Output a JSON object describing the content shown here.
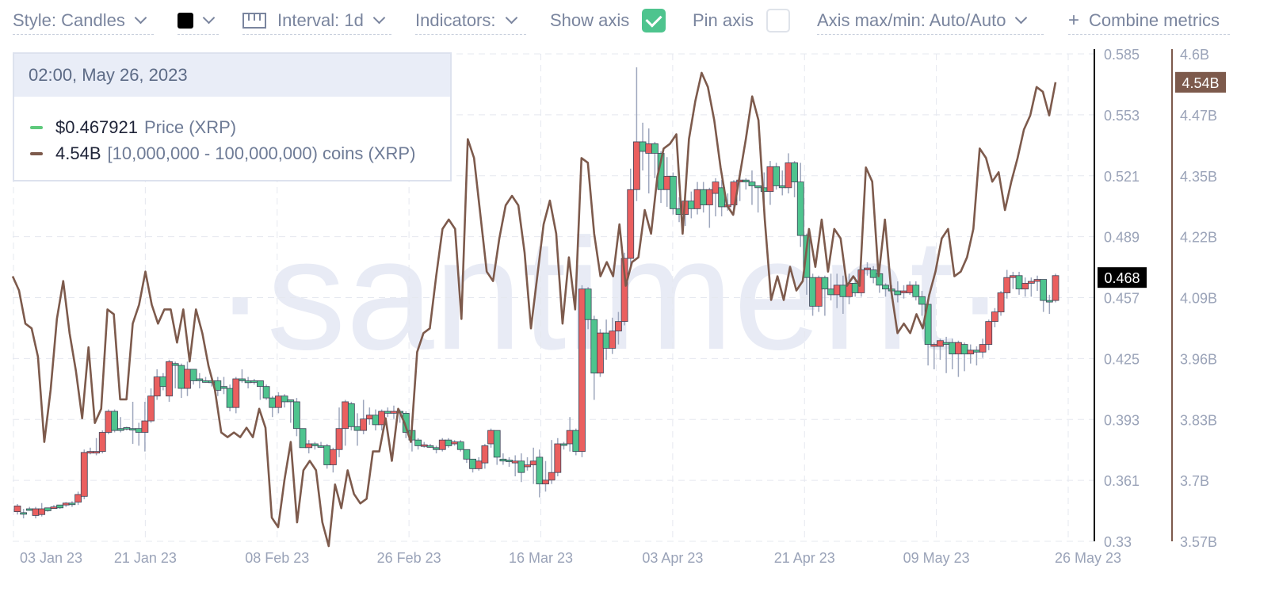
{
  "toolbar": {
    "style_label": "Style: Candles",
    "color_swatch": "#000000",
    "interval_label": "Interval: 1d",
    "indicators_label": "Indicators:",
    "show_axis_label": "Show axis",
    "show_axis_checked": true,
    "pin_axis_label": "Pin axis",
    "pin_axis_checked": false,
    "axis_maxmin_label": "Axis max/min: Auto/Auto",
    "combine_metrics_label": "Combine metrics",
    "combine_icon": "plus-icon"
  },
  "watermark": "·santiment·",
  "tooltip": {
    "date": "02:00, May 26, 2023",
    "rows": [
      {
        "value": "$0.467921",
        "label": "Price (XRP)",
        "color": "#5ec97c"
      },
      {
        "value": "4.54B",
        "label": "[10,000,000 - 100,000,000) coins (XRP)",
        "color": "#7d5a4c"
      }
    ]
  },
  "chart_data": {
    "type": "candlestick+line",
    "x_ticks": [
      "03 Jan 23",
      "21 Jan 23",
      "08 Feb 23",
      "26 Feb 23",
      "16 Mar 23",
      "03 Apr 23",
      "21 Apr 23",
      "09 May 23",
      "26 May 23"
    ],
    "price_axis": {
      "ticks": [
        "0.585",
        "0.553",
        "0.521",
        "0.489",
        "0.457",
        "0.425",
        "0.393",
        "0.361",
        "0.33"
      ],
      "range": [
        0.33,
        0.585
      ],
      "current_label": "0.468",
      "current_value": 0.468
    },
    "supply_axis": {
      "ticks": [
        "4.6B",
        "4.47B",
        "4.35B",
        "4.22B",
        "4.09B",
        "3.96B",
        "3.83B",
        "3.7B",
        "3.57B"
      ],
      "range": [
        3.57,
        4.6
      ],
      "current_label": "4.54B",
      "current_value": 4.54,
      "color": "#7d5a4c"
    },
    "colors": {
      "up": "#4ec48e",
      "down": "#ea5f5f",
      "line": "#7d5a4c",
      "wick": "#9ea7bd"
    },
    "candles": [
      [
        0.3485,
        0.3495,
        0.3455,
        0.344
      ],
      [
        0.3445,
        0.347,
        0.345,
        0.342
      ],
      [
        0.347,
        0.348,
        0.347,
        0.346
      ],
      [
        0.347,
        0.348,
        0.3435,
        0.342
      ],
      [
        0.347,
        0.35,
        0.344,
        0.343
      ],
      [
        0.346,
        0.3465,
        0.3475,
        0.3455
      ],
      [
        0.348,
        0.349,
        0.3475,
        0.347
      ],
      [
        0.3475,
        0.349,
        0.349,
        0.347
      ],
      [
        0.35,
        0.3505,
        0.349,
        0.348
      ],
      [
        0.3495,
        0.351,
        0.35,
        0.348
      ],
      [
        0.3545,
        0.356,
        0.3505,
        0.349
      ],
      [
        0.3765,
        0.378,
        0.3535,
        0.352
      ],
      [
        0.377,
        0.379,
        0.3765,
        0.3755
      ],
      [
        0.377,
        0.384,
        0.3765,
        0.375
      ],
      [
        0.387,
        0.388,
        0.377,
        0.376
      ],
      [
        0.398,
        0.399,
        0.387,
        0.386
      ],
      [
        0.388,
        0.399,
        0.398,
        0.387
      ],
      [
        0.388,
        0.395,
        0.389,
        0.387
      ],
      [
        0.389,
        0.39,
        0.3895,
        0.388
      ],
      [
        0.389,
        0.403,
        0.389,
        0.381
      ],
      [
        0.387,
        0.392,
        0.389,
        0.38
      ],
      [
        0.393,
        0.403,
        0.387,
        0.377
      ],
      [
        0.406,
        0.41,
        0.393,
        0.392
      ],
      [
        0.416,
        0.42,
        0.406,
        0.404
      ],
      [
        0.411,
        0.418,
        0.416,
        0.409
      ],
      [
        0.424,
        0.425,
        0.406,
        0.403
      ],
      [
        0.422,
        0.424,
        0.423,
        0.41
      ],
      [
        0.41,
        0.423,
        0.422,
        0.405
      ],
      [
        0.42,
        0.424,
        0.41,
        0.406
      ],
      [
        0.414,
        0.417,
        0.42,
        0.412
      ],
      [
        0.414,
        0.418,
        0.415,
        0.41
      ],
      [
        0.414,
        0.416,
        0.414,
        0.413
      ],
      [
        0.413,
        0.415,
        0.414,
        0.411
      ],
      [
        0.409,
        0.416,
        0.414,
        0.406
      ],
      [
        0.41,
        0.416,
        0.411,
        0.407
      ],
      [
        0.4,
        0.412,
        0.41,
        0.398
      ],
      [
        0.415,
        0.416,
        0.4,
        0.397
      ],
      [
        0.414,
        0.42,
        0.415,
        0.413
      ],
      [
        0.413,
        0.416,
        0.414,
        0.41
      ],
      [
        0.414,
        0.415,
        0.414,
        0.412
      ],
      [
        0.411,
        0.413,
        0.414,
        0.404
      ],
      [
        0.405,
        0.412,
        0.411,
        0.404
      ],
      [
        0.4,
        0.406,
        0.405,
        0.395
      ],
      [
        0.406,
        0.408,
        0.4,
        0.397
      ],
      [
        0.403,
        0.407,
        0.406,
        0.4
      ],
      [
        0.403,
        0.404,
        0.404,
        0.392
      ],
      [
        0.389,
        0.405,
        0.403,
        0.385
      ],
      [
        0.379,
        0.388,
        0.389,
        0.379
      ],
      [
        0.381,
        0.383,
        0.379,
        0.376
      ],
      [
        0.38,
        0.382,
        0.381,
        0.378
      ],
      [
        0.38,
        0.382,
        0.38,
        0.379
      ],
      [
        0.37,
        0.381,
        0.38,
        0.368
      ],
      [
        0.378,
        0.379,
        0.37,
        0.366
      ],
      [
        0.389,
        0.4,
        0.378,
        0.374
      ],
      [
        0.403,
        0.404,
        0.389,
        0.38
      ],
      [
        0.39,
        0.403,
        0.402,
        0.388
      ],
      [
        0.388,
        0.397,
        0.39,
        0.38
      ],
      [
        0.394,
        0.404,
        0.388,
        0.386
      ],
      [
        0.396,
        0.4,
        0.394,
        0.391
      ],
      [
        0.391,
        0.399,
        0.396,
        0.388
      ],
      [
        0.398,
        0.399,
        0.391,
        0.388
      ],
      [
        0.397,
        0.4,
        0.398,
        0.395
      ],
      [
        0.398,
        0.401,
        0.397,
        0.394
      ],
      [
        0.398,
        0.399,
        0.398,
        0.392
      ],
      [
        0.387,
        0.398,
        0.397,
        0.384
      ],
      [
        0.383,
        0.39,
        0.388,
        0.377
      ],
      [
        0.38,
        0.384,
        0.383,
        0.378
      ],
      [
        0.3805,
        0.382,
        0.38,
        0.379
      ],
      [
        0.38,
        0.381,
        0.38,
        0.379
      ],
      [
        0.378,
        0.38,
        0.379,
        0.376
      ],
      [
        0.383,
        0.384,
        0.378,
        0.377
      ],
      [
        0.38,
        0.384,
        0.383,
        0.379
      ],
      [
        0.382,
        0.383,
        0.381,
        0.38
      ],
      [
        0.378,
        0.383,
        0.382,
        0.377
      ],
      [
        0.373,
        0.378,
        0.378,
        0.371
      ],
      [
        0.368,
        0.373,
        0.373,
        0.366
      ],
      [
        0.372,
        0.374,
        0.368,
        0.367
      ],
      [
        0.38,
        0.381,
        0.371,
        0.368
      ],
      [
        0.388,
        0.389,
        0.381,
        0.379
      ],
      [
        0.374,
        0.388,
        0.388,
        0.37
      ],
      [
        0.372,
        0.376,
        0.373,
        0.37
      ],
      [
        0.372,
        0.374,
        0.3725,
        0.369
      ],
      [
        0.372,
        0.375,
        0.371,
        0.364
      ],
      [
        0.366,
        0.376,
        0.372,
        0.361
      ],
      [
        0.37,
        0.374,
        0.369,
        0.367
      ],
      [
        0.372,
        0.379,
        0.37,
        0.36
      ],
      [
        0.36,
        0.378,
        0.374,
        0.353
      ],
      [
        0.362,
        0.372,
        0.36,
        0.356
      ],
      [
        0.366,
        0.383,
        0.362,
        0.36
      ],
      [
        0.381,
        0.384,
        0.366,
        0.364
      ],
      [
        0.381,
        0.382,
        0.381,
        0.378
      ],
      [
        0.388,
        0.395,
        0.381,
        0.377
      ],
      [
        0.377,
        0.389,
        0.388,
        0.375
      ],
      [
        0.462,
        0.464,
        0.377,
        0.374
      ],
      [
        0.446,
        0.463,
        0.462,
        0.441
      ],
      [
        0.418,
        0.448,
        0.446,
        0.404
      ],
      [
        0.439,
        0.441,
        0.418,
        0.416
      ],
      [
        0.431,
        0.446,
        0.439,
        0.425
      ],
      [
        0.44,
        0.447,
        0.431,
        0.428
      ],
      [
        0.445,
        0.45,
        0.44,
        0.433
      ],
      [
        0.478,
        0.481,
        0.445,
        0.443
      ],
      [
        0.514,
        0.525,
        0.478,
        0.472
      ],
      [
        0.539,
        0.578,
        0.514,
        0.508
      ],
      [
        0.534,
        0.549,
        0.539,
        0.524
      ],
      [
        0.538,
        0.546,
        0.533,
        0.512
      ],
      [
        0.533,
        0.539,
        0.538,
        0.52
      ],
      [
        0.514,
        0.534,
        0.533,
        0.507
      ],
      [
        0.521,
        0.531,
        0.514,
        0.505
      ],
      [
        0.504,
        0.523,
        0.521,
        0.501
      ],
      [
        0.501,
        0.51,
        0.504,
        0.497
      ],
      [
        0.508,
        0.514,
        0.501,
        0.495
      ],
      [
        0.504,
        0.513,
        0.508,
        0.499
      ],
      [
        0.514,
        0.518,
        0.504,
        0.501
      ],
      [
        0.506,
        0.518,
        0.514,
        0.502
      ],
      [
        0.514,
        0.515,
        0.506,
        0.494
      ],
      [
        0.518,
        0.52,
        0.512,
        0.5
      ],
      [
        0.505,
        0.519,
        0.515,
        0.5
      ],
      [
        0.506,
        0.512,
        0.505,
        0.503
      ],
      [
        0.518,
        0.519,
        0.506,
        0.501
      ],
      [
        0.519,
        0.524,
        0.518,
        0.508
      ],
      [
        0.518,
        0.52,
        0.519,
        0.514
      ],
      [
        0.516,
        0.524,
        0.518,
        0.506
      ],
      [
        0.515,
        0.516,
        0.516,
        0.502
      ],
      [
        0.513,
        0.523,
        0.515,
        0.507
      ],
      [
        0.526,
        0.529,
        0.513,
        0.506
      ],
      [
        0.516,
        0.528,
        0.526,
        0.514
      ],
      [
        0.515,
        0.524,
        0.516,
        0.511
      ],
      [
        0.528,
        0.533,
        0.515,
        0.512
      ],
      [
        0.518,
        0.529,
        0.528,
        0.51
      ],
      [
        0.49,
        0.528,
        0.518,
        0.484
      ],
      [
        0.468,
        0.491,
        0.49,
        0.459
      ],
      [
        0.453,
        0.47,
        0.468,
        0.448
      ],
      [
        0.468,
        0.469,
        0.453,
        0.45
      ],
      [
        0.462,
        0.469,
        0.468,
        0.448
      ],
      [
        0.459,
        0.47,
        0.462,
        0.456
      ],
      [
        0.464,
        0.47,
        0.459,
        0.452
      ],
      [
        0.458,
        0.469,
        0.464,
        0.449
      ],
      [
        0.465,
        0.47,
        0.458,
        0.454
      ],
      [
        0.46,
        0.468,
        0.465,
        0.458
      ],
      [
        0.472,
        0.473,
        0.46,
        0.458
      ],
      [
        0.473,
        0.476,
        0.472,
        0.469
      ],
      [
        0.468,
        0.474,
        0.472,
        0.465
      ],
      [
        0.464,
        0.47,
        0.47,
        0.46
      ],
      [
        0.462,
        0.465,
        0.464,
        0.458
      ],
      [
        0.461,
        0.464,
        0.462,
        0.457
      ],
      [
        0.459,
        0.466,
        0.461,
        0.455
      ],
      [
        0.461,
        0.464,
        0.46,
        0.457
      ],
      [
        0.464,
        0.466,
        0.46,
        0.459
      ],
      [
        0.458,
        0.466,
        0.464,
        0.456
      ],
      [
        0.454,
        0.461,
        0.458,
        0.448
      ],
      [
        0.433,
        0.456,
        0.454,
        0.422
      ],
      [
        0.433,
        0.434,
        0.432,
        0.42
      ],
      [
        0.435,
        0.436,
        0.432,
        0.425
      ],
      [
        0.433,
        0.437,
        0.434,
        0.418
      ],
      [
        0.428,
        0.436,
        0.434,
        0.42
      ],
      [
        0.434,
        0.435,
        0.428,
        0.416
      ],
      [
        0.428,
        0.434,
        0.433,
        0.419
      ],
      [
        0.43,
        0.433,
        0.428,
        0.423
      ],
      [
        0.429,
        0.432,
        0.43,
        0.422
      ],
      [
        0.433,
        0.436,
        0.429,
        0.426
      ],
      [
        0.445,
        0.446,
        0.433,
        0.43
      ],
      [
        0.45,
        0.452,
        0.445,
        0.442
      ],
      [
        0.46,
        0.461,
        0.45,
        0.448
      ],
      [
        0.468,
        0.472,
        0.46,
        0.457
      ],
      [
        0.469,
        0.471,
        0.468,
        0.462
      ],
      [
        0.462,
        0.471,
        0.469,
        0.459
      ],
      [
        0.465,
        0.468,
        0.462,
        0.458
      ],
      [
        0.466,
        0.468,
        0.465,
        0.458
      ],
      [
        0.467,
        0.469,
        0.466,
        0.461
      ],
      [
        0.456,
        0.467,
        0.467,
        0.45
      ],
      [
        0.456,
        0.459,
        0.456,
        0.449
      ],
      [
        0.469,
        0.47,
        0.456,
        0.455
      ]
    ],
    "supply_line": [
      4.13,
      4.1,
      4.03,
      4.02,
      3.96,
      3.78,
      3.89,
      4.04,
      4.12,
      4.01,
      3.93,
      3.83,
      3.98,
      3.82,
      3.85,
      4.06,
      4.05,
      3.87,
      3.87,
      4.03,
      4.07,
      4.14,
      4.07,
      4.03,
      4.06,
      4.06,
      3.99,
      4.06,
      3.95,
      4.06,
      4.01,
      3.94,
      3.89,
      3.8,
      3.79,
      3.8,
      3.79,
      3.81,
      3.79,
      3.85,
      3.81,
      3.62,
      3.6,
      3.7,
      3.78,
      3.61,
      3.72,
      3.74,
      3.72,
      3.61,
      3.56,
      3.69,
      3.64,
      3.72,
      3.67,
      3.65,
      3.66,
      3.76,
      3.76,
      3.83,
      3.74,
      3.85,
      3.82,
      3.78,
      3.97,
      4.01,
      4.02,
      4.13,
      4.23,
      4.25,
      4.23,
      4.04,
      4.42,
      4.38,
      4.26,
      4.14,
      4.12,
      4.21,
      4.28,
      4.3,
      4.28,
      4.18,
      4.02,
      4.13,
      4.24,
      4.29,
      4.22,
      4.03,
      4.17,
      4.06,
      4.38,
      4.37,
      4.22,
      4.13,
      4.16,
      4.13,
      4.24,
      4.11,
      4.16,
      4.17,
      4.27,
      4.22,
      4.34,
      4.4,
      4.41,
      4.43,
      4.22,
      4.42,
      4.5,
      4.56,
      4.53,
      4.46,
      4.36,
      4.28,
      4.26,
      4.34,
      4.42,
      4.51,
      4.46,
      4.25,
      4.08,
      4.13,
      4.08,
      4.15,
      4.1,
      4.12,
      4.23,
      4.15,
      4.25,
      4.14,
      4.23,
      4.21,
      4.11,
      4.13,
      4.11,
      4.36,
      4.33,
      4.13,
      4.25,
      4.1,
      4.01,
      4.03,
      4.01,
      4.05,
      4.02,
      4.09,
      4.14,
      4.21,
      4.23,
      4.13,
      4.14,
      4.17,
      4.23,
      4.4,
      4.38,
      4.33,
      4.35,
      4.27,
      4.33,
      4.38,
      4.44,
      4.47,
      4.53,
      4.52,
      4.47,
      4.54
    ]
  }
}
